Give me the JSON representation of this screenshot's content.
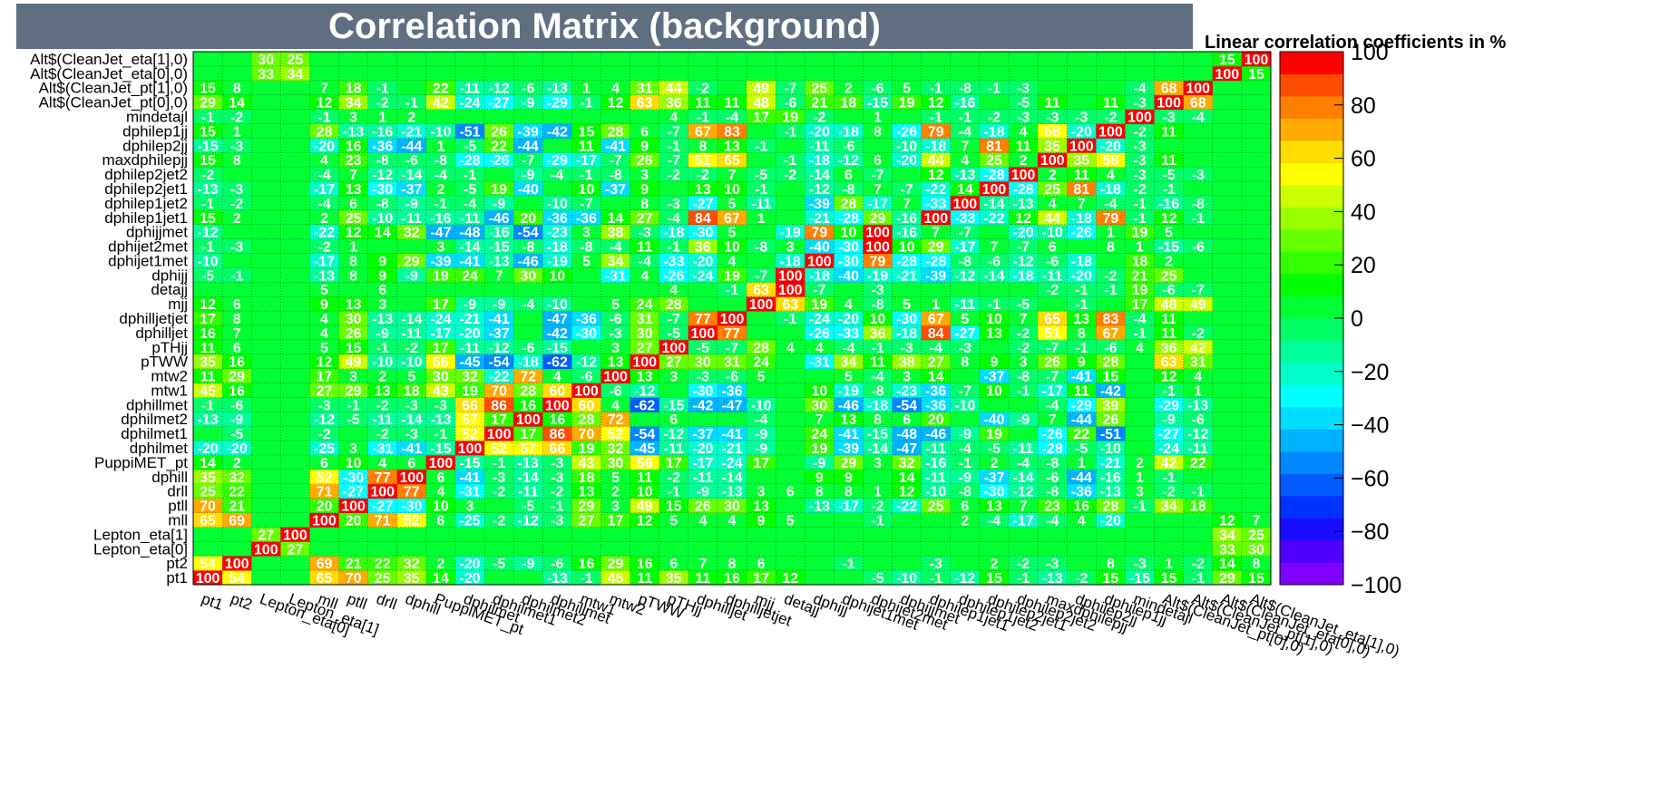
{
  "title": "Correlation Matrix (background)",
  "subtitle": "Linear correlation coefficients in %",
  "chart_data": {
    "type": "heatmap",
    "labels": [
      "pt1",
      "pt2",
      "Lepton_eta[0]",
      "Lepton_eta[1]",
      "mll",
      "ptll",
      "drll",
      "dphill",
      "PuppiMET_pt",
      "dphilmet",
      "dphilmet1",
      "dphilmet2",
      "dphillmet",
      "mtw1",
      "mtw2",
      "pTWW",
      "pTHjj",
      "dphilljet",
      "dphilljetjet",
      "mjj",
      "detajj",
      "dphijj",
      "dphijet1met",
      "dphijet2met",
      "dphijjmet",
      "dphilep1jet1",
      "dphilep1jet2",
      "dphilep2jet1",
      "dphilep2jet2",
      "maxdphilepjj",
      "dphilep2jj",
      "dphilep1jj",
      "mindetajl",
      "Alt$(CleanJet_pt[0],0)",
      "Alt$(CleanJet_pt[1],0)",
      "Alt$(CleanJet_eta[0],0)",
      "Alt$(CleanJet_eta[1],0)"
    ],
    "colorbar_ticks": [
      100,
      80,
      60,
      40,
      20,
      0,
      -20,
      -40,
      -60,
      -80,
      -100
    ],
    "zlim": [
      -100,
      100
    ],
    "palette": [
      "#7f00ff",
      "#5000ff",
      "#1a0dff",
      "#0033ff",
      "#005cff",
      "#0088ff",
      "#00b3ff",
      "#00ddff",
      "#00ffff",
      "#00ffcc",
      "#00ff99",
      "#00ff66",
      "#00ff33",
      "#00ff00",
      "#33ff00",
      "#66ff00",
      "#99ff00",
      "#ccff00",
      "#ffff00",
      "#ffdd00",
      "#ffaa00",
      "#ff8000",
      "#ff4d00",
      "#ff0000"
    ],
    "values": [
      [
        100,
        54,
        0,
        0,
        65,
        70,
        25,
        35,
        14,
        -20,
        0,
        0,
        -13,
        -1,
        45,
        11,
        35,
        11,
        16,
        17,
        12,
        0,
        0,
        -5,
        -10,
        -1,
        -12,
        15,
        -1,
        -13,
        -2,
        15,
        -15,
        15,
        -1,
        29,
        15
      ],
      [
        54,
        100,
        0,
        0,
        69,
        21,
        22,
        32,
        2,
        -20,
        -5,
        -9,
        -6,
        16,
        29,
        16,
        6,
        7,
        8,
        6,
        0,
        0,
        -1,
        0,
        0,
        -3,
        0,
        2,
        -2,
        -3,
        0,
        8,
        -3,
        1,
        -2,
        14,
        8
      ],
      [
        0,
        0,
        100,
        27,
        0,
        0,
        0,
        0,
        0,
        0,
        0,
        0,
        0,
        0,
        0,
        0,
        0,
        0,
        0,
        0,
        0,
        0,
        0,
        0,
        0,
        0,
        0,
        0,
        0,
        0,
        0,
        0,
        0,
        0,
        0,
        33,
        30
      ],
      [
        0,
        0,
        27,
        100,
        0,
        0,
        0,
        0,
        0,
        0,
        0,
        0,
        0,
        0,
        0,
        0,
        0,
        0,
        0,
        0,
        0,
        0,
        0,
        0,
        0,
        0,
        0,
        0,
        0,
        0,
        0,
        0,
        0,
        0,
        0,
        34,
        25
      ],
      [
        65,
        69,
        0,
        0,
        100,
        20,
        71,
        52,
        6,
        -25,
        -2,
        -12,
        -3,
        27,
        17,
        12,
        5,
        4,
        4,
        9,
        5,
        0,
        0,
        -1,
        0,
        0,
        2,
        -4,
        -17,
        -4,
        4,
        -20,
        0,
        0,
        0,
        12,
        7
      ],
      [
        70,
        21,
        0,
        0,
        20,
        100,
        -27,
        -30,
        10,
        3,
        0,
        -5,
        -1,
        29,
        3,
        49,
        15,
        26,
        30,
        13,
        0,
        -13,
        -17,
        -2,
        -22,
        25,
        6,
        13,
        7,
        23,
        16,
        28,
        -1,
        34,
        18,
        0,
        0
      ],
      [
        25,
        22,
        0,
        0,
        71,
        -27,
        100,
        77,
        4,
        -31,
        -2,
        -11,
        -2,
        13,
        2,
        10,
        -1,
        -9,
        -13,
        3,
        6,
        8,
        8,
        1,
        12,
        -10,
        -8,
        -30,
        -12,
        -8,
        -36,
        -13,
        3,
        -2,
        -1,
        0,
        0
      ],
      [
        35,
        32,
        0,
        0,
        52,
        -30,
        77,
        100,
        6,
        -41,
        -3,
        -14,
        -3,
        18,
        5,
        11,
        -2,
        -11,
        -14,
        0,
        0,
        9,
        9,
        0,
        14,
        -11,
        -9,
        -37,
        -14,
        -6,
        -44,
        -16,
        1,
        -1,
        0,
        0,
        0
      ],
      [
        14,
        2,
        0,
        0,
        6,
        10,
        4,
        6,
        100,
        -15,
        -1,
        -13,
        -3,
        43,
        30,
        56,
        17,
        -17,
        -24,
        17,
        0,
        -9,
        29,
        3,
        32,
        -16,
        -1,
        2,
        -4,
        -8,
        1,
        -21,
        2,
        42,
        22,
        0,
        0
      ],
      [
        -20,
        -20,
        0,
        0,
        -25,
        3,
        -31,
        -41,
        -15,
        100,
        52,
        57,
        66,
        19,
        32,
        -45,
        -11,
        -20,
        -21,
        -9,
        0,
        19,
        -39,
        -14,
        -47,
        -11,
        -4,
        -5,
        -11,
        -28,
        -5,
        -10,
        0,
        -24,
        -11,
        0,
        0
      ],
      [
        0,
        -5,
        0,
        0,
        -2,
        0,
        -2,
        -3,
        -1,
        52,
        100,
        17,
        86,
        70,
        52,
        -54,
        -12,
        -37,
        -41,
        -9,
        0,
        24,
        -41,
        -15,
        -48,
        -46,
        -9,
        19,
        0,
        -26,
        22,
        -51,
        0,
        -27,
        -12,
        0,
        0
      ],
      [
        -13,
        -9,
        0,
        0,
        -12,
        -5,
        -11,
        -14,
        -13,
        57,
        17,
        100,
        16,
        28,
        72,
        0,
        6,
        0,
        0,
        -4,
        0,
        7,
        13,
        8,
        6,
        20,
        0,
        -40,
        -9,
        7,
        -44,
        26,
        0,
        -9,
        -6,
        0,
        0
      ],
      [
        -1,
        -6,
        0,
        0,
        -3,
        -1,
        -2,
        -3,
        -3,
        66,
        86,
        16,
        100,
        60,
        4,
        -62,
        -15,
        -42,
        -47,
        -10,
        0,
        30,
        -46,
        -18,
        -54,
        -36,
        -10,
        0,
        0,
        -4,
        -29,
        39,
        0,
        -29,
        -13,
        0,
        0
      ],
      [
        45,
        16,
        0,
        0,
        27,
        29,
        13,
        18,
        43,
        19,
        70,
        28,
        60,
        100,
        -6,
        -12,
        0,
        -30,
        -36,
        0,
        0,
        10,
        -19,
        -8,
        -23,
        -36,
        -7,
        10,
        -1,
        -17,
        11,
        -42,
        0,
        -1,
        1,
        0,
        0
      ],
      [
        11,
        29,
        0,
        0,
        17,
        3,
        2,
        5,
        30,
        32,
        -22,
        72,
        4,
        -6,
        100,
        13,
        3,
        -3,
        -6,
        5,
        0,
        0,
        5,
        -4,
        3,
        14,
        0,
        -37,
        -8,
        -7,
        -41,
        15,
        0,
        12,
        4,
        0,
        0
      ],
      [
        35,
        16,
        0,
        0,
        12,
        49,
        -10,
        -10,
        56,
        -45,
        -54,
        -18,
        -62,
        -12,
        13,
        100,
        27,
        30,
        31,
        24,
        0,
        -31,
        34,
        11,
        38,
        27,
        8,
        9,
        3,
        26,
        9,
        28,
        0,
        63,
        31,
        0,
        0
      ],
      [
        11,
        6,
        0,
        0,
        5,
        15,
        -1,
        -2,
        17,
        -11,
        -12,
        -6,
        -15,
        0,
        3,
        27,
        100,
        -5,
        -7,
        28,
        4,
        4,
        -4,
        -1,
        -3,
        -4,
        -3,
        0,
        -2,
        -7,
        -1,
        -6,
        4,
        36,
        42,
        0,
        0
      ],
      [
        16,
        7,
        0,
        0,
        4,
        26,
        -9,
        -11,
        -17,
        -20,
        -37,
        0,
        -42,
        -30,
        -3,
        30,
        -5,
        100,
        77,
        0,
        0,
        -26,
        -33,
        36,
        -18,
        84,
        -27,
        13,
        -2,
        51,
        8,
        67,
        -1,
        11,
        -2,
        0,
        0
      ],
      [
        17,
        8,
        0,
        0,
        4,
        30,
        -13,
        -14,
        -24,
        -21,
        -41,
        0,
        -47,
        -36,
        -6,
        31,
        -7,
        77,
        100,
        0,
        -1,
        -24,
        -20,
        10,
        -30,
        67,
        5,
        10,
        7,
        65,
        13,
        83,
        -4,
        11,
        0,
        0,
        0
      ],
      [
        12,
        6,
        0,
        0,
        9,
        13,
        3,
        0,
        17,
        -9,
        -9,
        -4,
        -10,
        0,
        5,
        24,
        28,
        0,
        0,
        100,
        63,
        19,
        4,
        -8,
        5,
        1,
        -11,
        -1,
        -5,
        0,
        -1,
        0,
        17,
        48,
        49,
        0,
        0
      ],
      [
        0,
        0,
        0,
        0,
        5,
        0,
        6,
        0,
        0,
        0,
        0,
        0,
        0,
        0,
        0,
        0,
        4,
        0,
        -1,
        63,
        100,
        -7,
        0,
        -3,
        0,
        0,
        0,
        0,
        0,
        -2,
        -1,
        -1,
        19,
        -6,
        -7,
        0,
        0
      ],
      [
        -5,
        -1,
        0,
        0,
        -13,
        8,
        9,
        -9,
        19,
        24,
        7,
        30,
        10,
        0,
        -31,
        4,
        -26,
        -24,
        19,
        -7,
        100,
        -18,
        -40,
        -19,
        -21,
        -39,
        -12,
        -14,
        -18,
        -11,
        -20,
        -2,
        21,
        25,
        0,
        0,
        0
      ],
      [
        -10,
        0,
        0,
        0,
        -17,
        8,
        9,
        29,
        -39,
        -41,
        -13,
        -46,
        -19,
        5,
        34,
        -4,
        -33,
        -20,
        4,
        0,
        -18,
        100,
        -30,
        79,
        -28,
        -28,
        -8,
        -6,
        -12,
        -6,
        -18,
        0,
        18,
        2,
        0,
        0,
        0
      ],
      [
        -1,
        -3,
        0,
        0,
        -2,
        1,
        0,
        0,
        3,
        -14,
        -15,
        -8,
        -18,
        -8,
        -4,
        11,
        -1,
        36,
        10,
        -8,
        3,
        -40,
        -30,
        100,
        10,
        29,
        -17,
        7,
        -7,
        6,
        0,
        8,
        1,
        -15,
        -6,
        0,
        0
      ],
      [
        -12,
        0,
        0,
        0,
        -22,
        12,
        14,
        32,
        -47,
        -48,
        -16,
        -54,
        -23,
        3,
        38,
        -3,
        -18,
        -30,
        5,
        0,
        -19,
        79,
        10,
        100,
        -16,
        7,
        -7,
        0,
        -20,
        -10,
        -26,
        1,
        19,
        5,
        0,
        0,
        0
      ],
      [
        15,
        2,
        0,
        0,
        2,
        25,
        -10,
        -11,
        -16,
        -11,
        -46,
        20,
        -36,
        -36,
        14,
        27,
        -4,
        84,
        67,
        1,
        0,
        -21,
        -28,
        29,
        -16,
        100,
        -33,
        -22,
        12,
        44,
        -18,
        79,
        -1,
        12,
        -1,
        0,
        0
      ],
      [
        -1,
        -2,
        0,
        0,
        -4,
        6,
        -8,
        -9,
        -1,
        -4,
        -9,
        0,
        -10,
        -7,
        0,
        8,
        -3,
        -27,
        5,
        -11,
        0,
        -39,
        28,
        -17,
        7,
        -33,
        100,
        -14,
        -13,
        4,
        7,
        -4,
        -1,
        -16,
        -8,
        0,
        0
      ],
      [
        -13,
        -3,
        0,
        0,
        -17,
        13,
        -30,
        -37,
        2,
        -5,
        19,
        -40,
        0,
        10,
        -37,
        9,
        0,
        13,
        10,
        -1,
        0,
        -12,
        -8,
        7,
        -7,
        -22,
        14,
        100,
        -28,
        25,
        81,
        -18,
        -2,
        -1,
        0,
        0,
        0
      ],
      [
        -2,
        0,
        0,
        0,
        -4,
        7,
        -12,
        -14,
        -4,
        -1,
        0,
        -9,
        -4,
        -1,
        -8,
        3,
        -2,
        -2,
        7,
        -5,
        -2,
        -14,
        6,
        -7,
        0,
        12,
        -13,
        -28,
        100,
        2,
        11,
        4,
        -3,
        -5,
        -3,
        0,
        0
      ],
      [
        15,
        8,
        0,
        0,
        4,
        23,
        -8,
        -6,
        -8,
        -28,
        -26,
        -7,
        -29,
        -17,
        -7,
        26,
        -7,
        51,
        65,
        0,
        -1,
        -18,
        -12,
        6,
        -20,
        44,
        4,
        25,
        2,
        100,
        35,
        58,
        -3,
        11,
        0,
        0,
        0
      ],
      [
        -15,
        -3,
        0,
        0,
        -20,
        16,
        -36,
        -44,
        1,
        -5,
        22,
        -44,
        0,
        11,
        -41,
        9,
        -1,
        8,
        13,
        -1,
        0,
        -11,
        -6,
        0,
        -10,
        -18,
        7,
        81,
        11,
        35,
        100,
        -20,
        -3,
        0,
        0,
        0,
        0
      ],
      [
        15,
        1,
        0,
        0,
        28,
        -13,
        -16,
        -21,
        -10,
        -51,
        26,
        -39,
        -42,
        15,
        28,
        6,
        -7,
        67,
        83,
        0,
        -1,
        -20,
        -18,
        8,
        -26,
        79,
        -4,
        -18,
        4,
        58,
        -20,
        100,
        -2,
        11,
        0,
        0,
        0
      ],
      [
        -1,
        -2,
        0,
        0,
        -1,
        3,
        1,
        2,
        0,
        0,
        0,
        0,
        0,
        0,
        0,
        0,
        4,
        -1,
        -4,
        17,
        19,
        -2,
        0,
        1,
        0,
        -1,
        -1,
        -2,
        -3,
        -3,
        -3,
        -2,
        100,
        -3,
        -4,
        0,
        0
      ],
      [
        29,
        14,
        0,
        0,
        12,
        34,
        -2,
        -1,
        42,
        -24,
        -27,
        -9,
        -29,
        -1,
        12,
        63,
        36,
        11,
        11,
        48,
        -6,
        21,
        18,
        -15,
        19,
        12,
        -16,
        0,
        -5,
        11,
        0,
        11,
        -3,
        100,
        68,
        0,
        0
      ],
      [
        15,
        8,
        0,
        0,
        7,
        18,
        -1,
        0,
        22,
        -11,
        -12,
        -6,
        -13,
        1,
        4,
        31,
        44,
        -2,
        0,
        49,
        -7,
        25,
        2,
        -6,
        5,
        -1,
        -8,
        -1,
        -3,
        0,
        0,
        0,
        -4,
        68,
        100,
        0,
        0
      ],
      [
        0,
        0,
        33,
        34,
        0,
        0,
        0,
        0,
        0,
        0,
        0,
        0,
        0,
        0,
        0,
        0,
        0,
        0,
        0,
        0,
        0,
        0,
        0,
        0,
        0,
        0,
        0,
        0,
        0,
        0,
        0,
        0,
        0,
        0,
        0,
        100,
        15
      ],
      [
        0,
        0,
        30,
        25,
        0,
        0,
        0,
        0,
        0,
        0,
        0,
        0,
        0,
        0,
        0,
        0,
        0,
        0,
        0,
        0,
        0,
        0,
        0,
        0,
        0,
        0,
        0,
        0,
        0,
        0,
        0,
        0,
        0,
        0,
        0,
        15,
        100
      ]
    ]
  }
}
